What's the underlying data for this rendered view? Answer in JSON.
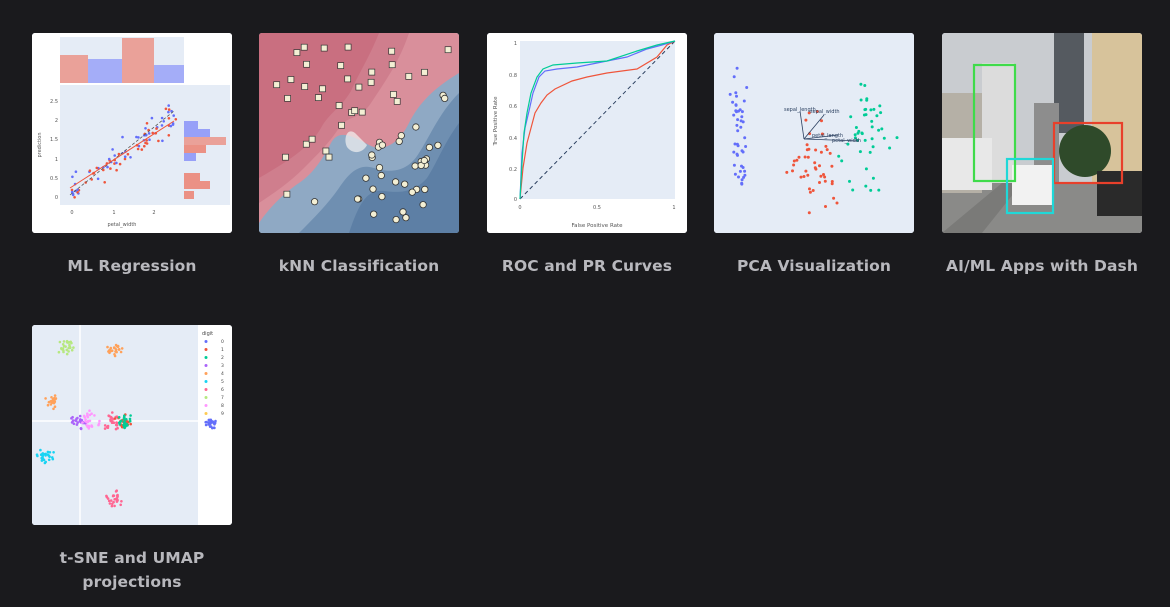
{
  "gallery": {
    "items": [
      {
        "title": "ML Regression",
        "thumb": "ml-regression-plot"
      },
      {
        "title": "kNN Classification",
        "thumb": "knn-classification-plot"
      },
      {
        "title": "ROC and PR Curves",
        "thumb": "roc-curve-plot"
      },
      {
        "title": "PCA Visualization",
        "thumb": "pca-biplot"
      },
      {
        "title": "AI/ML Apps with Dash",
        "thumb": "object-detection-photo"
      },
      {
        "title": "t-SNE and UMAP projections",
        "thumb": "tsne-umap-scatter"
      }
    ]
  },
  "thumb_text": {
    "regression": {
      "xlabel": "petal_width",
      "ylabel": "prediction",
      "yticks": [
        "2.5",
        "2",
        "1.5",
        "1",
        "0.5",
        "0"
      ],
      "xticks": [
        "0",
        "1",
        "2"
      ]
    },
    "roc": {
      "xlabel": "False Positive Rate",
      "ylabel": "True Positive Rate",
      "xticks": [
        "0",
        "0.5",
        "1"
      ],
      "yticks": [
        "1",
        "0.8",
        "0.6",
        "0.4",
        "0.2",
        "0"
      ]
    },
    "pca": {
      "labels": [
        "sepal_length",
        "sepal_width",
        "petal_length",
        "petal_width"
      ]
    },
    "tsne": {
      "legend_title": "digit",
      "legend": [
        "0",
        "1",
        "2",
        "3",
        "4",
        "5",
        "6",
        "7",
        "8",
        "9"
      ]
    }
  },
  "colors": {
    "page_bg": "#1a1a1d",
    "plot_bg": "#e5ecf6",
    "label": "#b8b8bd",
    "digits": [
      "#636efa",
      "#ef553b",
      "#00cc96",
      "#ab63fa",
      "#ffa15a",
      "#19d3f3",
      "#ff6692",
      "#b6e880",
      "#ff97ff",
      "#fecb52"
    ]
  }
}
